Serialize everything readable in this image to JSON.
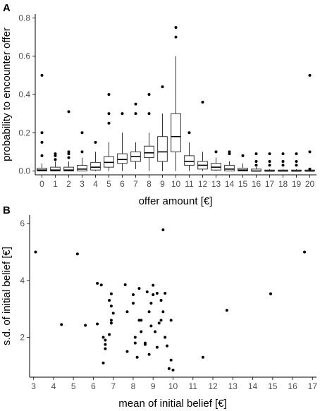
{
  "chart_data": [
    {
      "panel": "A",
      "type": "box",
      "xlabel": "offer amount [€]",
      "ylabel": "probability to encounter offer",
      "ylim": [
        -0.02,
        0.82
      ],
      "yticks": [
        0.0,
        0.2,
        0.4,
        0.6,
        0.8
      ],
      "ytick_labels": [
        "0.0",
        "0.2",
        "0.4",
        "0.6",
        "0.8"
      ],
      "categories": [
        "0",
        "1",
        "2",
        "3",
        "4",
        "5",
        "6",
        "7",
        "8",
        "9",
        "10",
        "11",
        "12",
        "13",
        "14",
        "15",
        "16",
        "17",
        "18",
        "19",
        "20"
      ],
      "boxes": [
        {
          "q1": 0.0,
          "median": 0.005,
          "q3": 0.015,
          "wlo": 0.0,
          "whi": 0.04,
          "outliers": [
            0.5,
            0.2,
            0.15,
            0.08
          ]
        },
        {
          "q1": 0.0,
          "median": 0.005,
          "q3": 0.02,
          "wlo": 0.0,
          "whi": 0.05,
          "outliers": [
            0.09,
            0.08,
            0.06
          ]
        },
        {
          "q1": 0.0,
          "median": 0.005,
          "q3": 0.02,
          "wlo": 0.0,
          "whi": 0.05,
          "outliers": [
            0.31,
            0.1,
            0.09,
            0.07
          ]
        },
        {
          "q1": 0.0,
          "median": 0.01,
          "q3": 0.03,
          "wlo": 0.0,
          "whi": 0.07,
          "outliers": [
            0.2,
            0.1
          ]
        },
        {
          "q1": 0.005,
          "median": 0.02,
          "q3": 0.045,
          "wlo": 0.0,
          "whi": 0.1,
          "outliers": [
            0.15
          ]
        },
        {
          "q1": 0.02,
          "median": 0.045,
          "q3": 0.075,
          "wlo": 0.0,
          "whi": 0.15,
          "outliers": [
            0.4,
            0.3,
            0.25
          ]
        },
        {
          "q1": 0.04,
          "median": 0.06,
          "q3": 0.09,
          "wlo": 0.0,
          "whi": 0.2,
          "outliers": [
            0.3
          ]
        },
        {
          "q1": 0.05,
          "median": 0.075,
          "q3": 0.1,
          "wlo": 0.01,
          "whi": 0.15,
          "outliers": [
            0.35,
            0.3
          ]
        },
        {
          "q1": 0.07,
          "median": 0.095,
          "q3": 0.13,
          "wlo": 0.0,
          "whi": 0.2,
          "outliers": [
            0.4,
            0.3
          ]
        },
        {
          "q1": 0.05,
          "median": 0.1,
          "q3": 0.18,
          "wlo": 0.0,
          "whi": 0.3,
          "outliers": [
            0.44
          ]
        },
        {
          "q1": 0.1,
          "median": 0.18,
          "q3": 0.3,
          "wlo": 0.0,
          "whi": 0.6,
          "outliers": [
            0.75,
            0.7
          ]
        },
        {
          "q1": 0.03,
          "median": 0.05,
          "q3": 0.08,
          "wlo": 0.0,
          "whi": 0.15,
          "outliers": [
            0.2
          ]
        },
        {
          "q1": 0.01,
          "median": 0.03,
          "q3": 0.05,
          "wlo": 0.0,
          "whi": 0.1,
          "outliers": [
            0.36
          ]
        },
        {
          "q1": 0.005,
          "median": 0.02,
          "q3": 0.04,
          "wlo": 0.0,
          "whi": 0.07,
          "outliers": [
            0.1
          ]
        },
        {
          "q1": 0.0,
          "median": 0.01,
          "q3": 0.03,
          "wlo": 0.0,
          "whi": 0.05,
          "outliers": [
            0.1,
            0.09
          ]
        },
        {
          "q1": 0.0,
          "median": 0.005,
          "q3": 0.015,
          "wlo": 0.0,
          "whi": 0.04,
          "outliers": [
            0.08
          ]
        },
        {
          "q1": 0.0,
          "median": 0.0,
          "q3": 0.01,
          "wlo": 0.0,
          "whi": 0.02,
          "outliers": [
            0.09,
            0.05,
            0.03
          ]
        },
        {
          "q1": 0.0,
          "median": 0.0,
          "q3": 0.005,
          "wlo": 0.0,
          "whi": 0.01,
          "outliers": [
            0.09,
            0.05,
            0.03
          ]
        },
        {
          "q1": 0.0,
          "median": 0.0,
          "q3": 0.005,
          "wlo": 0.0,
          "whi": 0.01,
          "outliers": [
            0.09,
            0.05,
            0.03
          ]
        },
        {
          "q1": 0.0,
          "median": 0.0,
          "q3": 0.005,
          "wlo": 0.0,
          "whi": 0.01,
          "outliers": [
            0.09,
            0.05,
            0.03
          ]
        },
        {
          "q1": 0.0,
          "median": 0.0,
          "q3": 0.005,
          "wlo": 0.0,
          "whi": 0.01,
          "outliers": [
            0.5,
            0.1,
            0.01
          ]
        }
      ]
    },
    {
      "panel": "B",
      "type": "scatter",
      "xlabel": "mean of initial belief [€]",
      "ylabel": "s.d. of initial belief [€]",
      "xlim": [
        2.8,
        17.2
      ],
      "ylim": [
        0.6,
        6.3
      ],
      "xticks": [
        3,
        4,
        5,
        6,
        7,
        8,
        9,
        10,
        11,
        12,
        13,
        14,
        15,
        16,
        17
      ],
      "yticks": [
        2,
        4,
        6
      ],
      "points": [
        [
          3.1,
          5.0
        ],
        [
          4.4,
          2.45
        ],
        [
          5.2,
          4.93
        ],
        [
          5.6,
          2.42
        ],
        [
          6.2,
          2.47
        ],
        [
          6.2,
          3.9
        ],
        [
          6.4,
          3.84
        ],
        [
          6.5,
          2.0
        ],
        [
          6.5,
          1.1
        ],
        [
          6.6,
          1.9
        ],
        [
          6.6,
          1.75
        ],
        [
          6.6,
          1.6
        ],
        [
          6.8,
          3.3
        ],
        [
          6.9,
          3.53
        ],
        [
          6.9,
          3.1
        ],
        [
          6.9,
          2.6
        ],
        [
          6.9,
          2.5
        ],
        [
          6.8,
          2.1
        ],
        [
          7.0,
          2.85
        ],
        [
          7.6,
          3.85
        ],
        [
          7.7,
          2.9
        ],
        [
          7.7,
          1.5
        ],
        [
          8.0,
          3.5
        ],
        [
          8.0,
          3.2
        ],
        [
          8.1,
          2.0
        ],
        [
          8.1,
          1.8
        ],
        [
          8.2,
          1.3
        ],
        [
          8.3,
          3.72
        ],
        [
          8.3,
          2.6
        ],
        [
          8.4,
          2.6
        ],
        [
          8.4,
          2.2
        ],
        [
          8.6,
          1.75
        ],
        [
          8.6,
          1.8
        ],
        [
          8.7,
          3.6
        ],
        [
          8.8,
          2.9
        ],
        [
          8.8,
          1.4
        ],
        [
          8.9,
          3.2
        ],
        [
          8.9,
          2.4
        ],
        [
          9.0,
          3.83
        ],
        [
          9.0,
          3.5
        ],
        [
          9.1,
          2.2
        ],
        [
          9.2,
          1.65
        ],
        [
          9.2,
          3.55
        ],
        [
          9.3,
          2.5
        ],
        [
          9.4,
          2.6
        ],
        [
          9.4,
          3.3
        ],
        [
          9.5,
          5.78
        ],
        [
          9.5,
          2.9
        ],
        [
          9.6,
          3.55
        ],
        [
          9.6,
          2.0
        ],
        [
          9.7,
          1.7
        ],
        [
          9.8,
          0.9
        ],
        [
          9.9,
          1.2
        ],
        [
          9.9,
          2.6
        ],
        [
          10.0,
          0.85
        ],
        [
          11.5,
          1.3
        ],
        [
          12.7,
          2.95
        ],
        [
          14.9,
          3.53
        ],
        [
          16.6,
          5.0
        ]
      ]
    }
  ]
}
